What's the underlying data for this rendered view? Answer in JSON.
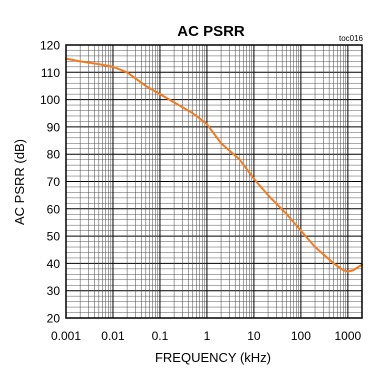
{
  "chart_data": {
    "type": "line",
    "title": "AC PSRR",
    "tag": "toc016",
    "xlabel": "FREQUENCY (kHz)",
    "ylabel": "AC PSRR (dB)",
    "x_scale": "log",
    "xlim": [
      0.001,
      2000
    ],
    "ylim": [
      20,
      120
    ],
    "x_ticks": [
      {
        "value": 0.001,
        "label": "0.001"
      },
      {
        "value": 0.01,
        "label": "0.01"
      },
      {
        "value": 0.1,
        "label": "0.1"
      },
      {
        "value": 1,
        "label": "1"
      },
      {
        "value": 10,
        "label": "10"
      },
      {
        "value": 100,
        "label": "100"
      },
      {
        "value": 1000,
        "label": "1000"
      }
    ],
    "y_ticks": [
      {
        "value": 20,
        "label": "20"
      },
      {
        "value": 30,
        "label": "30"
      },
      {
        "value": 40,
        "label": "40"
      },
      {
        "value": 50,
        "label": "50"
      },
      {
        "value": 60,
        "label": "60"
      },
      {
        "value": 70,
        "label": "70"
      },
      {
        "value": 80,
        "label": "80"
      },
      {
        "value": 90,
        "label": "90"
      },
      {
        "value": 100,
        "label": "100"
      },
      {
        "value": 110,
        "label": "110"
      },
      {
        "value": 120,
        "label": "120"
      }
    ],
    "y_minor_step": 2,
    "grid": true,
    "series": [
      {
        "color": "#f47b20",
        "x": [
          0.001,
          0.002,
          0.005,
          0.01,
          0.02,
          0.05,
          0.1,
          0.2,
          0.5,
          1,
          2,
          5,
          10,
          20,
          50,
          100,
          200,
          500,
          800,
          1000,
          1300,
          1600,
          2000
        ],
        "y": [
          115,
          114,
          113,
          112,
          110,
          105,
          102,
          99,
          95,
          91,
          84,
          78,
          71,
          65,
          58,
          52,
          46,
          40,
          37.5,
          37,
          37.5,
          38.5,
          39.5
        ]
      }
    ]
  }
}
